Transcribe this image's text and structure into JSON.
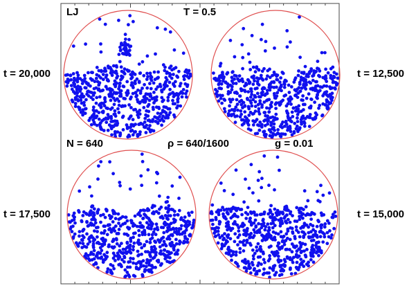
{
  "labels": {
    "potential": "LJ",
    "temperature": "T = 0.5",
    "particles": "N = 640",
    "density": "ρ = 640/1600",
    "gravity": "g = 0.01"
  },
  "panels": [
    {
      "time": "t = 20,000"
    },
    {
      "time": "t = 12,500"
    },
    {
      "time": "t = 17,500"
    },
    {
      "time": "t = 15,000"
    }
  ]
}
